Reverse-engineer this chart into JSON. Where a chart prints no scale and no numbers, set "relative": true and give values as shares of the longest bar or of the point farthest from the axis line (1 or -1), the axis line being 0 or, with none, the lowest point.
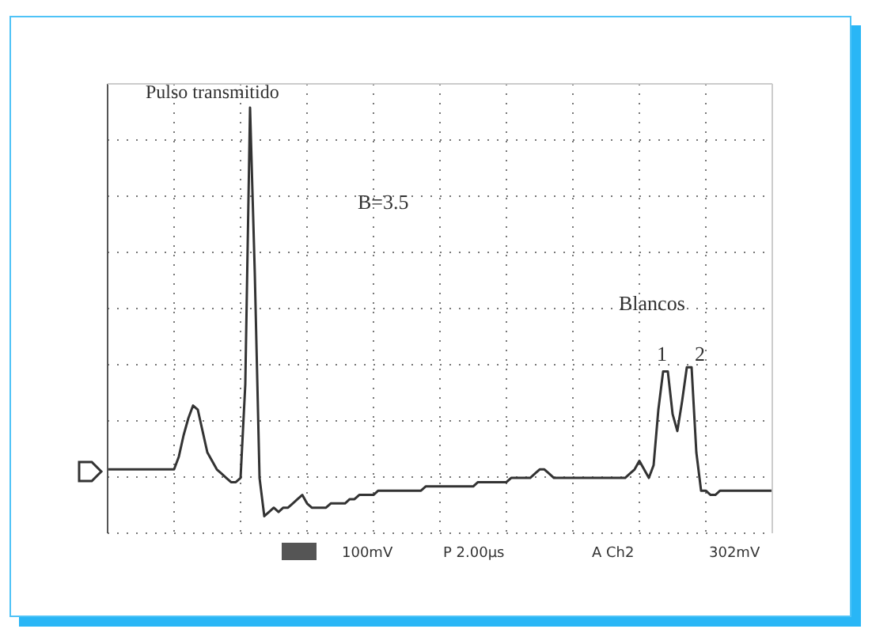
{
  "chart_data": {
    "type": "line",
    "relative": true,
    "grid": true,
    "marker": "none",
    "line_style": "solid",
    "categories": [
      null,
      null,
      null,
      null,
      null,
      null,
      null,
      null,
      null,
      null,
      null,
      null,
      null,
      null,
      null,
      null,
      null,
      null,
      null,
      null,
      null,
      null,
      null,
      null,
      null,
      null,
      null,
      null,
      null,
      null,
      null,
      null,
      null,
      null,
      null,
      null,
      null,
      null,
      null,
      null,
      null,
      null,
      null,
      null,
      null,
      null,
      null,
      null,
      null,
      null,
      null,
      null,
      null,
      null,
      null,
      null,
      null,
      null,
      null,
      null,
      null,
      null,
      null,
      null,
      null,
      null,
      null,
      null,
      null,
      null,
      null,
      null,
      null,
      null,
      null,
      null,
      null,
      null,
      null,
      null,
      null,
      null,
      null,
      null,
      null,
      null,
      null,
      null,
      null,
      null,
      null,
      null,
      null,
      null,
      null,
      null,
      null,
      null,
      null,
      null,
      null,
      null,
      null,
      null,
      null,
      null,
      null,
      null,
      null,
      null,
      null,
      null,
      null,
      null,
      null,
      null,
      null,
      null,
      null,
      null,
      null,
      null,
      null,
      null,
      null,
      null,
      null,
      null,
      null,
      null,
      null,
      null,
      null,
      null,
      null,
      null,
      null,
      null,
      null,
      null,
      null
    ],
    "series": [
      {
        "color": "#333333",
        "values": [
          0.15,
          0.15,
          0.15,
          0.15,
          0.15,
          0.15,
          0.15,
          0.15,
          0.15,
          0.15,
          0.15,
          0.15,
          0.15,
          0.15,
          0.15,
          0.18,
          0.23,
          0.27,
          0.3,
          0.29,
          0.24,
          0.19,
          0.17,
          0.15,
          0.14,
          0.13,
          0.12,
          0.12,
          0.13,
          0.35,
          1,
          0.61,
          0.13,
          0.04,
          0.05,
          0.06,
          0.05,
          0.06,
          0.06,
          0.07,
          0.08,
          0.09,
          0.07,
          0.06,
          0.06,
          0.06,
          0.06,
          0.07,
          0.07,
          0.07,
          0.07,
          0.08,
          0.08,
          0.09,
          0.09,
          0.09,
          0.09,
          0.1,
          0.1,
          0.1,
          0.1,
          0.1,
          0.1,
          0.1,
          0.1,
          0.1,
          0.1,
          0.11,
          0.11,
          0.11,
          0.11,
          0.11,
          0.11,
          0.11,
          0.11,
          0.11,
          0.11,
          0.11,
          0.12,
          0.12,
          0.12,
          0.12,
          0.12,
          0.12,
          0.12,
          0.13,
          0.13,
          0.13,
          0.13,
          0.13,
          0.14,
          0.15,
          0.15,
          0.14,
          0.13,
          0.13,
          0.13,
          0.13,
          0.13,
          0.13,
          0.13,
          0.13,
          0.13,
          0.13,
          0.13,
          0.13,
          0.13,
          0.13,
          0.13,
          0.13,
          0.14,
          0.15,
          0.17,
          0.15,
          0.13,
          0.16,
          0.29,
          0.38,
          0.38,
          0.28,
          0.24,
          0.31,
          0.39,
          0.39,
          0.19,
          0.1,
          0.1,
          0.09,
          0.09,
          0.1,
          0.1,
          0.1,
          0.1,
          0.1,
          0.1,
          0.1,
          0.1,
          0.1,
          0.1,
          0.1,
          0.1
        ]
      }
    ],
    "annotations": [
      "Pulso transmitido",
      "B=3.5",
      "Blancos",
      "1",
      "2",
      "100mV",
      "P 2.00µs",
      "A Ch2",
      "302mV"
    ]
  }
}
